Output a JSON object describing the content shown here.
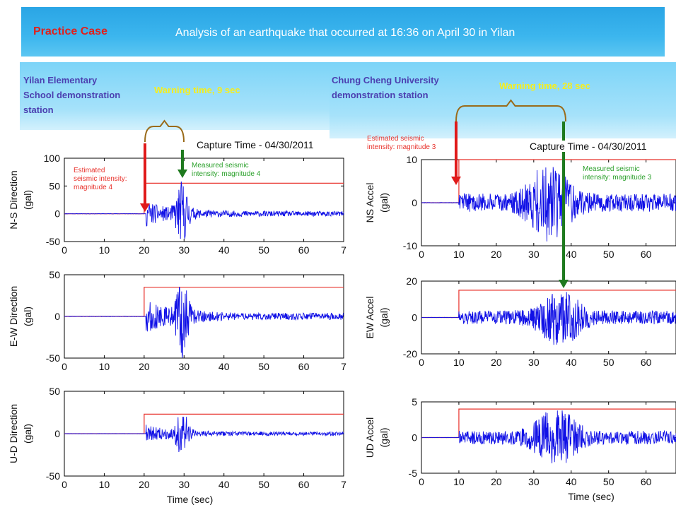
{
  "header": {
    "practice_label": "Practice Case",
    "title": "Analysis of an earthquake that occurred at 16:36 on April 30 in Yilan"
  },
  "left_station": {
    "name_lines": [
      "Yilan Elementary",
      "School demonstration",
      "station"
    ],
    "warning": "Warning time, 9 sec",
    "capture": "Capture Time - 04/30/2011",
    "estimated": [
      "Estimated",
      "seismic intensity:",
      "magnitude 4"
    ],
    "measured": [
      "Measured seismic",
      "intensity: magnitude 4"
    ]
  },
  "right_station": {
    "name_lines": [
      "Chung Cheng University",
      "demonstration station"
    ],
    "warning": "Warning time, 28 sec",
    "capture": "Capture Time - 04/30/2011",
    "estimated": [
      "Estimated seismic",
      "intensity: magnitude 3"
    ],
    "measured": [
      "Measured seismic",
      "intensity: magnitude 3"
    ]
  },
  "colors": {
    "signal": "#1010e6",
    "threshold": "#e8302a",
    "estimate_arrow": "#e01a1a",
    "measured_arrow": "#1f7a1f",
    "bracket": "#9a6b1a"
  },
  "chart_data": [
    {
      "type": "line",
      "station": "Yilan Elementary School demonstration station",
      "ylabel": "N-S Direction (gal)",
      "xlabel": "",
      "xlim": [
        0,
        70
      ],
      "ylim": [
        -50,
        100
      ],
      "xticks": [
        0,
        10,
        20,
        30,
        40,
        50,
        60,
        "7"
      ],
      "yticks": [
        -50,
        0,
        50,
        100
      ],
      "onset": 20,
      "threshold_level": 55,
      "peak": 58,
      "trough": -45,
      "peak_time": 29.5,
      "seed": 11
    },
    {
      "type": "line",
      "station": "Yilan Elementary School demonstration station",
      "ylabel": "E-W Direction (gal)",
      "xlabel": "",
      "xlim": [
        0,
        70
      ],
      "ylim": [
        -50,
        50
      ],
      "xticks": [
        0,
        10,
        20,
        30,
        40,
        50,
        60,
        "7"
      ],
      "yticks": [
        -50,
        0,
        50
      ],
      "onset": 20,
      "threshold_level": 35,
      "peak": 35,
      "trough": -50,
      "peak_time": 29.5,
      "seed": 22
    },
    {
      "type": "line",
      "station": "Yilan Elementary School demonstration station",
      "ylabel": "U-D Direction (gal)",
      "xlabel": "Time (sec)",
      "xlim": [
        0,
        70
      ],
      "ylim": [
        -50,
        50
      ],
      "xticks": [
        0,
        10,
        20,
        30,
        40,
        50,
        60,
        "7"
      ],
      "yticks": [
        -50,
        0,
        50
      ],
      "onset": 20,
      "threshold_level": 23,
      "peak": 20,
      "trough": -28,
      "peak_time": 29.5,
      "seed": 33
    },
    {
      "type": "line",
      "station": "Chung Cheng University demonstration station",
      "ylabel": "NS Accel (gal)",
      "xlabel": "",
      "xlim": [
        0,
        68
      ],
      "ylim": [
        -10,
        10
      ],
      "xticks": [
        0,
        10,
        20,
        30,
        40,
        50,
        60
      ],
      "yticks": [
        -10,
        0,
        10
      ],
      "onset": 10,
      "threshold_level": 10,
      "peak": 9.5,
      "trough": -9.5,
      "peak_time": 34,
      "seed": 44
    },
    {
      "type": "line",
      "station": "Chung Cheng University demonstration station",
      "ylabel": "EW Accel (gal)",
      "xlabel": "",
      "xlim": [
        0,
        68
      ],
      "ylim": [
        -20,
        20
      ],
      "xticks": [
        0,
        10,
        20,
        30,
        40,
        50,
        60
      ],
      "yticks": [
        -20,
        0,
        20
      ],
      "onset": 10,
      "threshold_level": 15,
      "peak": 14,
      "trough": -17,
      "peak_time": 37,
      "seed": 55
    },
    {
      "type": "line",
      "station": "Chung Cheng University demonstration station",
      "ylabel": "UD Accel (gal)",
      "xlabel": "Time (sec)",
      "xlim": [
        0,
        68
      ],
      "ylim": [
        -5,
        5
      ],
      "xticks": [
        0,
        10,
        20,
        30,
        40,
        50,
        60
      ],
      "yticks": [
        -5,
        0,
        5
      ],
      "onset": 10,
      "threshold_level": 4,
      "peak": 4.2,
      "trough": -4.3,
      "peak_time": 36,
      "seed": 66
    }
  ]
}
